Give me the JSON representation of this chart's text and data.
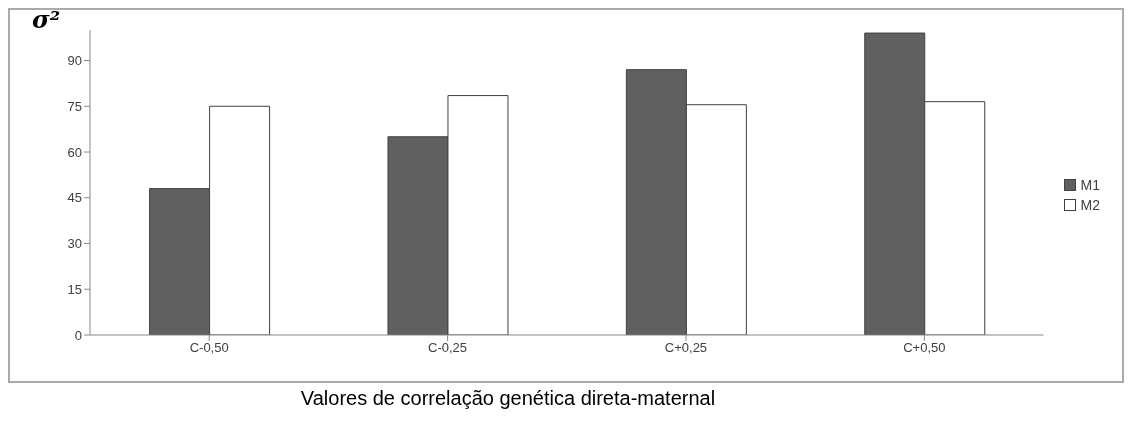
{
  "chart_data": {
    "type": "bar",
    "ylabel": "σ²",
    "xlabel": "Valores de correlação genética direta-maternal",
    "categories": [
      "C-0,50",
      "C-0,25",
      "C+0,25",
      "C+0,50"
    ],
    "series": [
      {
        "name": "M1",
        "color": "#606060",
        "values": [
          48,
          65,
          87,
          99
        ]
      },
      {
        "name": "M2",
        "color": "#ffffff",
        "values": [
          75,
          78.5,
          75.5,
          76.5
        ]
      }
    ],
    "ylim": [
      0,
      100
    ],
    "yticks": [
      0,
      15,
      30,
      45,
      60,
      75,
      90
    ],
    "grid": false,
    "legend": "right"
  }
}
